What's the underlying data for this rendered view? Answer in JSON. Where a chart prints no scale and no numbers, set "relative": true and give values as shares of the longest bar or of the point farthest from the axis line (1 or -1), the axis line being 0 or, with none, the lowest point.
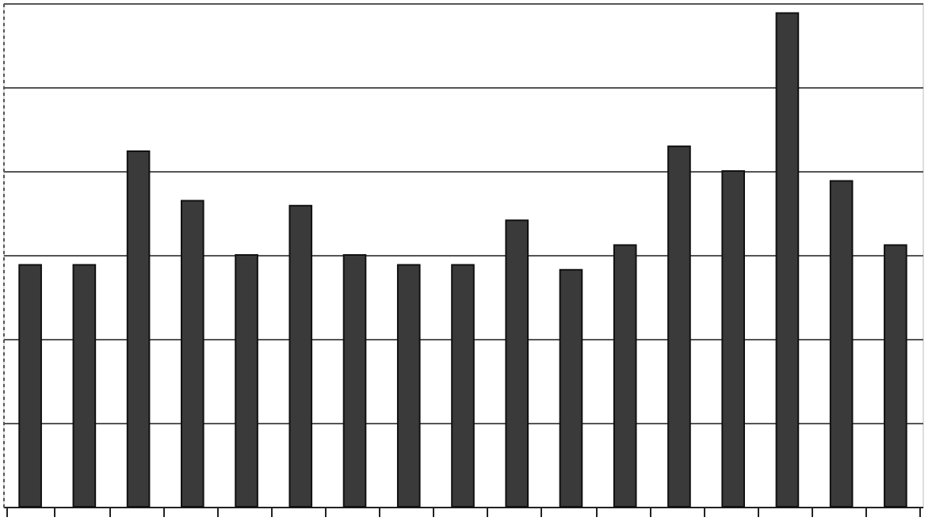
{
  "chart_data": {
    "type": "bar",
    "relative": true,
    "categories": [
      null,
      null,
      null,
      null,
      null,
      null,
      null,
      null,
      null,
      null,
      null,
      null,
      null,
      null,
      null,
      null,
      null
    ],
    "values": [
      0.49,
      0.49,
      0.72,
      0.62,
      0.51,
      0.61,
      0.51,
      0.49,
      0.49,
      0.58,
      0.48,
      0.53,
      0.73,
      0.68,
      1,
      0.66,
      0.53
    ],
    "color": "#3a3a3a",
    "grid": "y",
    "tick_labels": false
  }
}
